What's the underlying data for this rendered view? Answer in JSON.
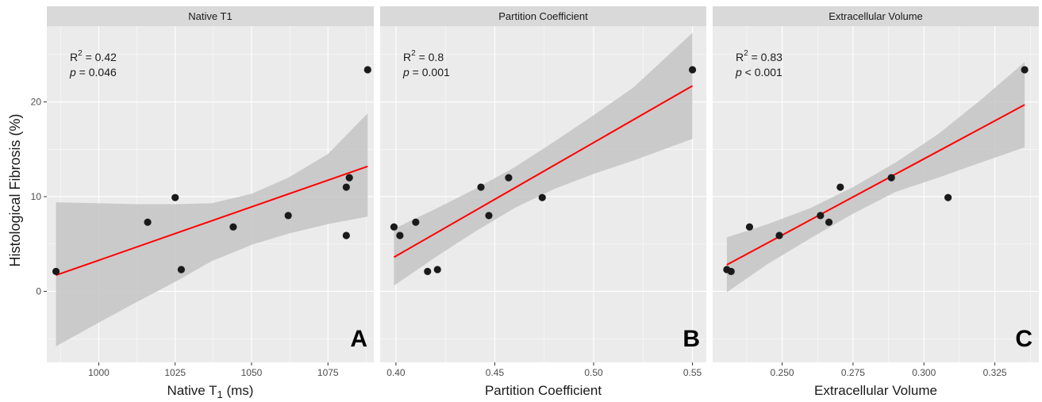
{
  "figure": {
    "ylabel": "Histological Fibrosis (%)",
    "background": "#ebebeb",
    "strip_color": "#d9d9d9",
    "band_color": "#c4c4c4",
    "line_color": "#ff0000",
    "point_color": "#1a1a1a"
  },
  "chart_data": [
    {
      "type": "scatter",
      "title": "Native T1",
      "xlabel_main": "Native T",
      "xlabel_sub": "1",
      "xlabel_unit": " (ms)",
      "panel_letter": "A",
      "stat_r2": "R² = 0.42",
      "stat_r2_base": "R",
      "stat_r2_sup": "2",
      "stat_r2_rest": " = 0.42",
      "stat_p_italic": "p",
      "stat_p_rest": " = 0.046",
      "xlim": [
        983,
        1090
      ],
      "ylim": [
        -7.5,
        28
      ],
      "xticks": [
        1000,
        1025,
        1050,
        1075
      ],
      "xtick_labels": [
        "1000",
        "1025",
        "1050",
        "1075"
      ],
      "yticks": [
        0,
        10,
        20
      ],
      "ytick_labels": [
        "0",
        "10",
        "20"
      ],
      "points": [
        [
          986,
          2.1
        ],
        [
          1016,
          7.3
        ],
        [
          1025,
          9.9
        ],
        [
          1027,
          2.3
        ],
        [
          1044,
          6.8
        ],
        [
          1062,
          8.0
        ],
        [
          1081,
          5.9
        ],
        [
          1081,
          11.0
        ],
        [
          1082,
          12.0
        ],
        [
          1088,
          23.4
        ]
      ],
      "fit": {
        "x": [
          986,
          1088
        ],
        "y": [
          1.7,
          13.2
        ]
      },
      "band": {
        "x": [
          986,
          1000,
          1012,
          1025,
          1037,
          1050,
          1062,
          1075,
          1088
        ],
        "lower": [
          -5.8,
          -3.3,
          -1.2,
          1.0,
          3.2,
          4.9,
          6.1,
          7.1,
          7.9
        ],
        "upper": [
          9.4,
          9.3,
          9.2,
          9.2,
          9.3,
          10.3,
          12.0,
          14.5,
          18.8
        ]
      }
    },
    {
      "type": "scatter",
      "title": "Partition Coefficient",
      "xlabel_main": "Partition Coefficient",
      "xlabel_sub": "",
      "xlabel_unit": "",
      "panel_letter": "B",
      "stat_r2": "R² = 0.8",
      "stat_r2_base": "R",
      "stat_r2_sup": "2",
      "stat_r2_rest": " = 0.8",
      "stat_p_italic": "p",
      "stat_p_rest": " = 0.001",
      "xlim": [
        0.392,
        0.557
      ],
      "ylim": [
        -7.5,
        28
      ],
      "xticks": [
        0.4,
        0.45,
        0.5,
        0.55
      ],
      "xtick_labels": [
        "0.40",
        "0.45",
        "0.50",
        "0.55"
      ],
      "yticks": [
        0,
        10,
        20
      ],
      "ytick_labels": [
        "0",
        "10",
        "20"
      ],
      "points": [
        [
          0.399,
          6.8
        ],
        [
          0.402,
          5.9
        ],
        [
          0.41,
          7.3
        ],
        [
          0.416,
          2.1
        ],
        [
          0.421,
          2.3
        ],
        [
          0.443,
          11.0
        ],
        [
          0.447,
          8.0
        ],
        [
          0.457,
          12.0
        ],
        [
          0.474,
          9.9
        ],
        [
          0.55,
          23.4
        ]
      ],
      "fit": {
        "x": [
          0.399,
          0.55
        ],
        "y": [
          3.6,
          21.7
        ]
      },
      "band": {
        "x": [
          0.399,
          0.42,
          0.44,
          0.46,
          0.48,
          0.5,
          0.52,
          0.55
        ],
        "lower": [
          0.6,
          3.6,
          6.3,
          8.8,
          10.8,
          12.4,
          13.8,
          16.1
        ],
        "upper": [
          6.6,
          8.7,
          10.8,
          13.1,
          15.8,
          18.6,
          21.5,
          27.3
        ]
      }
    },
    {
      "type": "scatter",
      "title": "Extracellular Volume",
      "xlabel_main": "Extracellular Volume",
      "xlabel_sub": "",
      "xlabel_unit": "",
      "panel_letter": "C",
      "stat_r2": "R² = 0.83",
      "stat_r2_base": "R",
      "stat_r2_sup": "2",
      "stat_r2_rest": " = 0.83",
      "stat_p_italic": "p",
      "stat_p_rest": " < 0.001",
      "xlim": [
        0.2255,
        0.3405
      ],
      "ylim": [
        -7.5,
        28
      ],
      "xticks": [
        0.25,
        0.275,
        0.3,
        0.325
      ],
      "xtick_labels": [
        "0.250",
        "0.275",
        "0.300",
        "0.325"
      ],
      "yticks": [
        0,
        10,
        20
      ],
      "ytick_labels": [
        "0",
        "10",
        "20"
      ],
      "points": [
        [
          0.2305,
          2.3
        ],
        [
          0.232,
          2.1
        ],
        [
          0.2385,
          6.8
        ],
        [
          0.249,
          5.9
        ],
        [
          0.2635,
          8.0
        ],
        [
          0.2665,
          7.3
        ],
        [
          0.2705,
          11.0
        ],
        [
          0.2885,
          12.0
        ],
        [
          0.3085,
          9.9
        ],
        [
          0.3355,
          23.4
        ]
      ],
      "fit": {
        "x": [
          0.2305,
          0.3355
        ],
        "y": [
          2.8,
          19.7
        ]
      },
      "band": {
        "x": [
          0.2305,
          0.245,
          0.26,
          0.275,
          0.29,
          0.305,
          0.32,
          0.3355
        ],
        "lower": [
          -0.1,
          2.9,
          5.6,
          8.2,
          10.5,
          12.0,
          13.6,
          15.2
        ],
        "upper": [
          5.7,
          7.1,
          8.8,
          11.0,
          13.6,
          16.6,
          20.2,
          24.2
        ]
      }
    }
  ]
}
